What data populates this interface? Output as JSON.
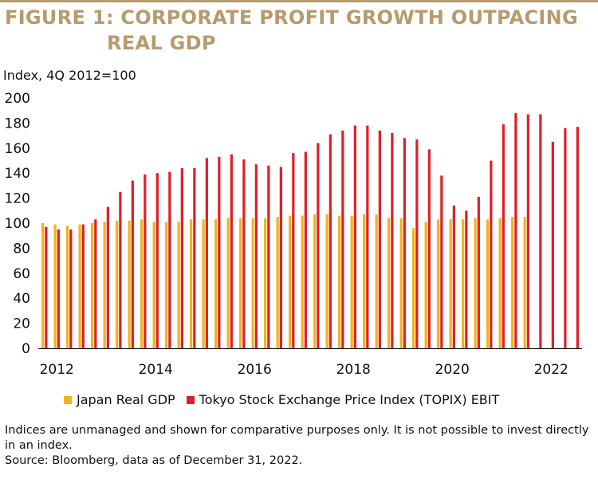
{
  "figure": {
    "title_line1": "FIGURE 1: CORPORATE PROFIT GROWTH OUTPACING",
    "title_line2": "REAL GDP"
  },
  "colors": {
    "title": "#b79a6d",
    "gdp": "#f0b31a",
    "topix": "#e01e27"
  },
  "notes": {
    "line1": "Indices are unmanaged and shown for comparative purposes only. It is not possible to invest directly in an index.",
    "line2": "Source: Bloomberg, data as of December 31, 2022."
  },
  "chart_data": {
    "type": "bar",
    "ylabel": "Index, 4Q 2012=100",
    "ylim": [
      0,
      200
    ],
    "yticks": [
      0,
      20,
      40,
      60,
      80,
      100,
      120,
      140,
      160,
      180,
      200
    ],
    "xtick_labels": [
      "2012",
      "2014",
      "2016",
      "2018",
      "2020",
      "2022"
    ],
    "x_start": "2012 Q1",
    "x_end": "2022 Q4",
    "grid": false,
    "legend_position": "bottom",
    "series": [
      {
        "name": "Japan Real GDP",
        "values": [
          100,
          99,
          98,
          99,
          100,
          101,
          102,
          102,
          103,
          101,
          101,
          101,
          103,
          103,
          103,
          104,
          104,
          104,
          104,
          105,
          106,
          106,
          107,
          107,
          106,
          106,
          107,
          107,
          104,
          104,
          96,
          101,
          103,
          103,
          103,
          104,
          103,
          104,
          105,
          105
        ]
      },
      {
        "name": "Tokyo Stock Exchange Price Index (TOPIX) EBIT",
        "values": [
          97,
          95,
          95,
          99,
          103,
          113,
          125,
          134,
          139,
          140,
          141,
          144,
          144,
          152,
          153,
          155,
          151,
          147,
          146,
          145,
          156,
          157,
          164,
          171,
          174,
          178,
          178,
          174,
          172,
          168,
          167,
          159,
          138,
          114,
          110,
          121,
          150,
          179,
          188,
          187,
          187,
          165,
          176,
          177
        ]
      }
    ]
  }
}
